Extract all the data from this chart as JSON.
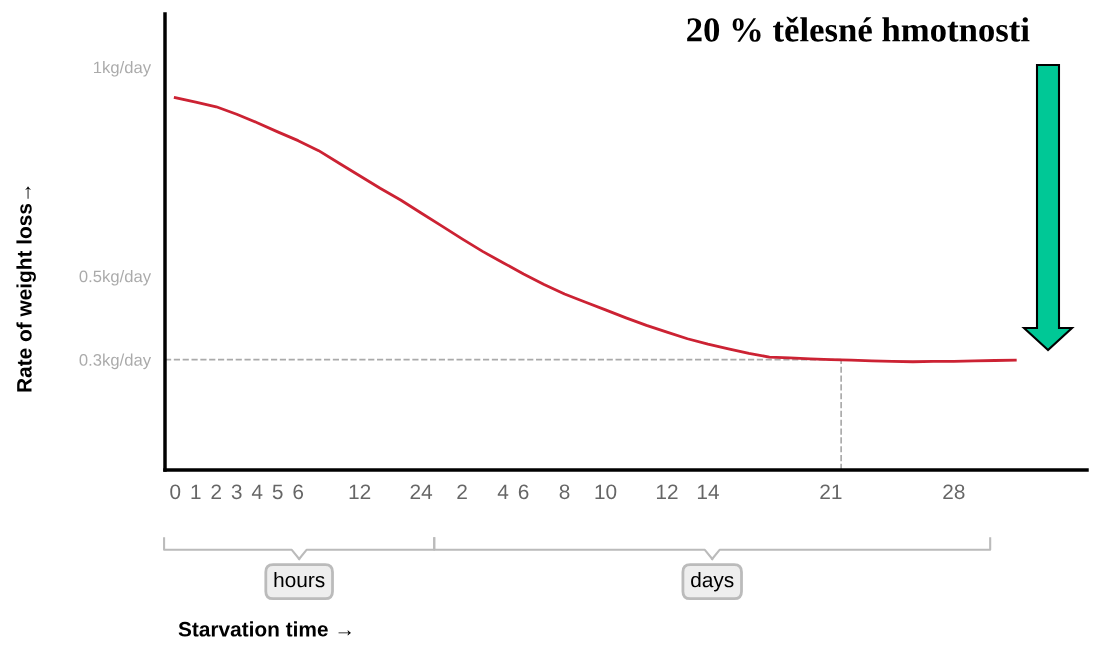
{
  "chart_data": {
    "type": "line",
    "title": "20 % tělesné hmotnosti",
    "ylabel": "Rate of weight loss→",
    "categories": [
      "0",
      "1",
      "2",
      "3",
      "4",
      "5",
      "6",
      null,
      null,
      "12",
      null,
      null,
      "24",
      null,
      "2",
      null,
      "4",
      "6",
      null,
      "8",
      null,
      "10",
      null,
      null,
      "12",
      null,
      "14",
      null,
      null,
      null,
      null,
      null,
      "21",
      null,
      null,
      null,
      null,
      null,
      "28",
      null,
      null,
      null,
      null,
      null,
      null
    ],
    "series": [
      {
        "color": "#cc2233",
        "values": [
          0.927,
          0.916,
          0.905,
          0.887,
          0.867,
          0.845,
          0.824,
          0.8,
          0.77,
          0.74,
          0.71,
          0.682,
          0.651,
          0.62,
          0.589,
          0.559,
          0.532,
          0.505,
          0.48,
          0.457,
          0.438,
          0.419,
          0.4,
          0.382,
          0.366,
          0.35,
          0.337,
          0.326,
          0.315,
          0.306,
          0.304,
          0.302,
          0.3,
          0.299,
          0.297,
          0.296,
          0.295,
          0.296,
          0.296,
          0.297,
          0.298,
          0.299,
          null,
          null,
          null
        ]
      }
    ],
    "ylim": [
      0.036,
      1.127
    ],
    "yticks": [
      {
        "value": 1,
        "label": "1kg/day"
      },
      {
        "value": 0.5,
        "label": "0.5kg/day"
      },
      {
        "value": 0.3,
        "label": "0.3kg/day"
      }
    ],
    "ref_lines": [
      {
        "axis": "y",
        "value": 0.3,
        "line_style": "dashed",
        "color": "#aaaaaa"
      },
      {
        "axis": "x",
        "value": "21",
        "line_style": "dashed",
        "color": "#aaaaaa"
      }
    ],
    "annotations": [
      "hours",
      "days",
      "Starvation time →"
    ],
    "grid": false,
    "marker": "none",
    "line_style": "solid"
  }
}
